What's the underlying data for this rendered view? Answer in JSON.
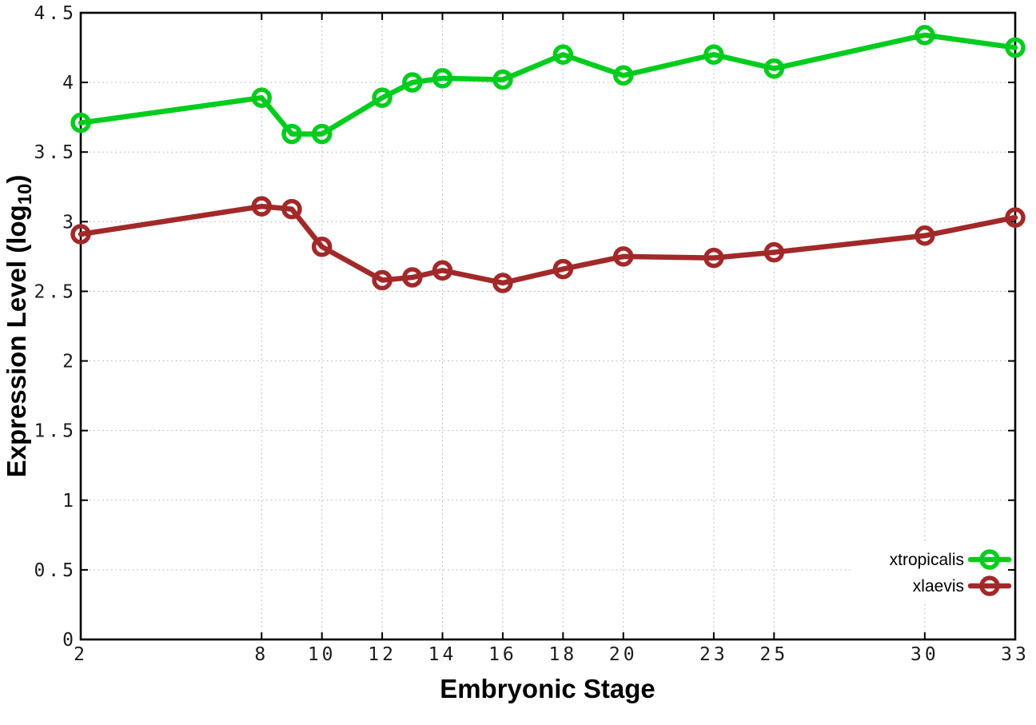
{
  "figure": {
    "background": "#ffffff",
    "ylabel_prefix": "Expression Level (log",
    "ylabel_sub": "10",
    "ylabel_suffix": ")"
  },
  "chart_data": {
    "type": "line",
    "title": "",
    "xlabel": "Embryonic Stage",
    "ylabel": "Expression Level (log10)",
    "x": [
      2,
      8,
      9,
      10,
      12,
      13,
      14,
      16,
      18,
      20,
      23,
      25,
      30,
      33
    ],
    "xticks": [
      2,
      8,
      10,
      12,
      14,
      16,
      18,
      20,
      23,
      25,
      30,
      33
    ],
    "yticks": [
      0,
      0.5,
      1,
      1.5,
      2,
      2.5,
      3,
      3.5,
      4,
      4.5
    ],
    "xlim": [
      2,
      33
    ],
    "ylim": [
      0,
      4.5
    ],
    "grid": true,
    "grid_color": "#b7b7c6",
    "legend_position": "bottom-right",
    "series": [
      {
        "name": "xtropicalis",
        "color": "#00cc1e",
        "values": [
          3.71,
          3.89,
          3.63,
          3.63,
          3.89,
          4.0,
          4.03,
          4.02,
          4.2,
          4.05,
          4.2,
          4.1,
          4.34,
          4.25
        ]
      },
      {
        "name": "xlaevis",
        "color": "#a22929",
        "values": [
          2.91,
          3.11,
          3.09,
          2.82,
          2.58,
          2.6,
          2.65,
          2.56,
          2.66,
          2.75,
          2.74,
          2.78,
          2.9,
          3.03
        ]
      }
    ]
  }
}
